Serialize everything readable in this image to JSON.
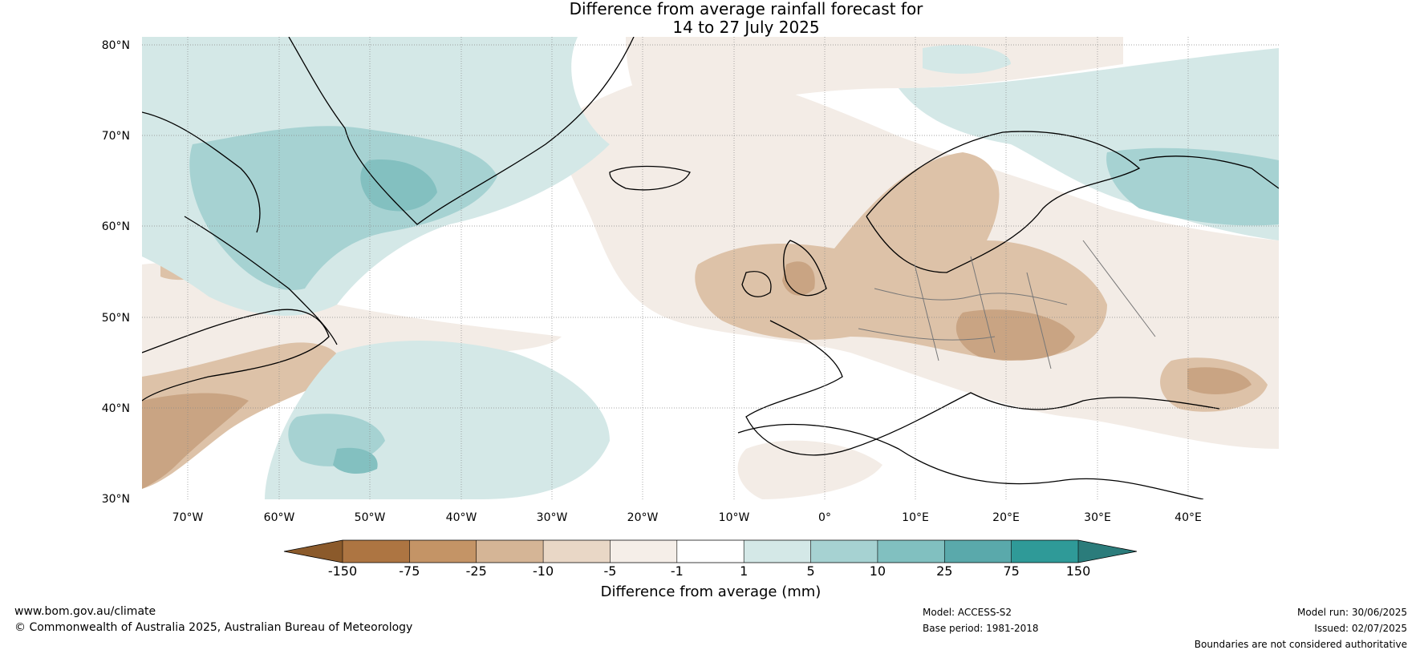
{
  "title": {
    "line1": "Difference from average rainfall forecast for",
    "line2": "14 to 27 July 2025"
  },
  "map": {
    "lat_labels": [
      "80°N",
      "70°N",
      "60°N",
      "50°N",
      "40°N",
      "30°N"
    ],
    "lon_labels": [
      "70°W",
      "60°W",
      "50°W",
      "40°W",
      "30°W",
      "20°W",
      "10°W",
      "0°",
      "10°E",
      "20°E",
      "30°E",
      "40°E"
    ],
    "colors": {
      "dry_strong": "#c9a483",
      "dry_moderate": "#ddc2a8",
      "dry_light": "#f3ece6",
      "wet_light": "#d4e8e7",
      "wet_moderate": "#a6d2d2",
      "wet_strong": "#83c0c0",
      "coastline": "#000000",
      "borders": "#777777",
      "gridline": "#888888"
    }
  },
  "colorbar": {
    "title": "Difference from average (mm)",
    "tick_labels": [
      "-150",
      "-75",
      "-25",
      "-10",
      "-5",
      "-1",
      "1",
      "5",
      "10",
      "25",
      "75",
      "150"
    ],
    "colors": [
      "#8b5a2b",
      "#ad7542",
      "#c49466",
      "#d5b596",
      "#e9d7c6",
      "#f5eee8",
      "#ffffff",
      "#d4e8e7",
      "#a6d2d2",
      "#81c0c0",
      "#5aa9ab",
      "#2f9a98",
      "#2b7c7b"
    ]
  },
  "footer": {
    "website": "www.bom.gov.au/climate",
    "copyright": "© Commonwealth of Australia 2025, Australian Bureau of Meteorology",
    "model": "Model: ACCESS-S2",
    "base_period": "Base period: 1981-2018",
    "model_run": "Model run: 30/06/2025",
    "issued": "Issued: 02/07/2025",
    "disclaimer": "Boundaries are not considered authoritative"
  }
}
